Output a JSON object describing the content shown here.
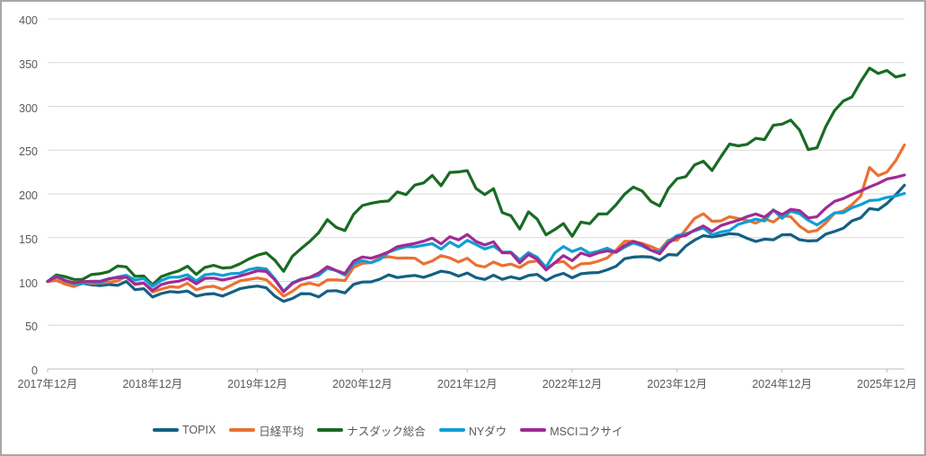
{
  "chart": {
    "background": "#FFFFFF",
    "frame_border_color": "#A6A6A6",
    "gridline_color": "#D9D9D9",
    "axis_line_color": "#BFBFBF",
    "label_color": "#595959"
  },
  "chart_data": {
    "type": "line",
    "title": "",
    "xlabel": "",
    "ylabel": "",
    "grid": "horizontal",
    "legend_position": "bottom",
    "start_month": "2017年12月",
    "frequency": "monthly",
    "y_axis": {
      "min": 0,
      "max": 400,
      "tick_interval": 50,
      "tick_labels": [
        "0",
        "50",
        "100",
        "150",
        "200",
        "250",
        "300",
        "350",
        "400"
      ]
    },
    "x_axis": {
      "months_per_tick": 12,
      "tick_labels": [
        "2017年12月",
        "2018年12月",
        "2019年12月",
        "2020年12月",
        "2021年12月",
        "2022年12月",
        "2023年12月",
        "2024年12月",
        "2025年12月"
      ]
    },
    "series": [
      {
        "name": "TOPIX",
        "color": "#156082",
        "values": [
          100,
          101.1,
          97.3,
          94.4,
          97.8,
          96.1,
          95.2,
          96.5,
          95.5,
          100.0,
          90.6,
          91.7,
          82.2,
          86.2,
          88.4,
          87.6,
          89.0,
          83.2,
          85.3,
          86.1,
          83.2,
          87.4,
          91.7,
          93.5,
          94.7,
          92.7,
          83.1,
          77.2,
          80.5,
          86.0,
          85.8,
          82.3,
          89.0,
          89.4,
          86.9,
          96.6,
          99.3,
          99.5,
          102.6,
          107.5,
          104.4,
          105.8,
          106.9,
          104.6,
          107.9,
          111.7,
          110.1,
          106.1,
          109.6,
          104.3,
          102.3,
          107.1,
          102.4,
          105.2,
          102.9,
          106.8,
          108.0,
          101.0,
          106.2,
          109.2,
          104.1,
          108.7,
          109.7,
          110.2,
          113.2,
          117.2,
          125.9,
          127.8,
          128.3,
          127.8,
          124.0,
          130.7,
          130.2,
          140.4,
          147.2,
          152.3,
          150.9,
          152.5,
          154.6,
          153.7,
          149.2,
          145.6,
          148.3,
          147.5,
          153.2,
          153.4,
          147.6,
          146.3,
          146.7,
          154.1,
          157.0,
          160.7,
          169.2,
          172.6,
          183.3,
          181.8,
          189.0,
          199.0,
          210.0
        ]
      },
      {
        "name": "日経平均",
        "color": "#E97132",
        "values": [
          100,
          101.5,
          96.9,
          94.2,
          98.7,
          97.5,
          98.0,
          99.1,
          100.4,
          106.0,
          96.3,
          98.2,
          87.9,
          91.2,
          93.9,
          93.2,
          97.8,
          90.5,
          93.5,
          94.5,
          90.9,
          95.6,
          100.7,
          102.3,
          103.9,
          101.9,
          92.9,
          83.1,
          88.7,
          96.1,
          97.9,
          95.4,
          101.6,
          101.8,
          100.9,
          116.1,
          120.6,
          121.5,
          127.2,
          128.2,
          126.6,
          126.8,
          126.5,
          119.9,
          123.4,
          129.4,
          126.9,
          122.2,
          126.5,
          118.6,
          116.5,
          122.2,
          117.9,
          119.8,
          115.9,
          122.1,
          123.4,
          113.9,
          121.2,
          122.9,
          114.6,
          120.0,
          120.6,
          123.2,
          126.8,
          135.7,
          145.8,
          145.7,
          143.3,
          139.9,
          135.6,
          147.1,
          147.0,
          159.4,
          172.0,
          177.3,
          168.7,
          169.1,
          173.9,
          171.8,
          169.8,
          166.6,
          171.7,
          167.8,
          175.2,
          173.8,
          163.2,
          156.5,
          158.3,
          166.8,
          177.9,
          180.4,
          187.7,
          197.4,
          230.2,
          220.8,
          225.0,
          238.0,
          256.0
        ]
      },
      {
        "name": "ナスダック総合",
        "color": "#196B24",
        "values": [
          100,
          107.4,
          105.4,
          102.3,
          102.4,
          107.8,
          108.8,
          111.1,
          117.5,
          116.6,
          105.8,
          106.2,
          96.1,
          105.5,
          109.1,
          112.0,
          117.3,
          108.0,
          116.0,
          118.4,
          115.3,
          115.9,
          120.1,
          125.5,
          130.0,
          132.6,
          124.1,
          111.5,
          128.8,
          137.5,
          145.7,
          155.7,
          170.6,
          161.8,
          158.1,
          176.7,
          186.7,
          189.3,
          191.1,
          191.9,
          202.3,
          199.2,
          210.1,
          212.5,
          221.0,
          209.3,
          224.5,
          225.1,
          226.6,
          206.3,
          199.2,
          206.0,
          178.7,
          175.0,
          159.8,
          179.5,
          171.2,
          153.2,
          159.2,
          166.1,
          151.6,
          167.8,
          166.0,
          177.0,
          177.1,
          187.4,
          199.7,
          207.8,
          203.3,
          191.5,
          186.2,
          206.1,
          217.4,
          219.7,
          233.1,
          237.3,
          226.8,
          242.4,
          256.9,
          254.9,
          256.6,
          263.5,
          262.1,
          278.4,
          279.7,
          284.3,
          273.0,
          250.6,
          252.7,
          276.9,
          295.1,
          306.0,
          310.8,
          328.3,
          343.7,
          337.5,
          341.0,
          333.5,
          336.0
        ]
      },
      {
        "name": "NYダウ",
        "color": "#0F9ED5",
        "values": [
          100,
          105.8,
          101.3,
          97.5,
          97.8,
          98.8,
          98.2,
          102.8,
          105.0,
          107.0,
          101.6,
          103.3,
          94.4,
          101.1,
          104.8,
          104.9,
          107.6,
          100.4,
          107.6,
          108.7,
          106.8,
          108.9,
          109.4,
          113.5,
          115.4,
          114.3,
          102.8,
          88.7,
          98.5,
          102.7,
          104.4,
          106.9,
          115.0,
          112.4,
          107.2,
          119.9,
          123.8,
          121.3,
          125.1,
          133.4,
          137.0,
          139.7,
          139.6,
          141.3,
          143.1,
          136.9,
          144.9,
          139.5,
          147.0,
          142.1,
          137.1,
          140.3,
          133.4,
          133.5,
          124.5,
          132.9,
          127.5,
          116.2,
          132.4,
          139.9,
          134.1,
          137.9,
          132.1,
          134.6,
          137.9,
          133.1,
          139.2,
          143.9,
          140.5,
          135.6,
          133.7,
          145.4,
          152.5,
          154.4,
          157.8,
          161.0,
          153.0,
          156.5,
          158.3,
          165.2,
          168.1,
          171.2,
          169.0,
          181.7,
          172.1,
          180.2,
          177.4,
          169.9,
          164.5,
          171.0,
          178.4,
          178.5,
          184.2,
          187.7,
          192.4,
          193.0,
          196.0,
          197.5,
          200.5
        ]
      },
      {
        "name": "MSCIコクサイ",
        "color": "#A02B93",
        "values": [
          100,
          105.4,
          100.8,
          98.6,
          99.7,
          100.2,
          100.1,
          103.1,
          104.2,
          104.8,
          97.1,
          98.1,
          89.6,
          96.3,
          99.0,
          100.2,
          103.6,
          97.3,
          103.5,
          103.8,
          101.6,
          103.6,
          106.2,
          109.0,
          112.1,
          111.4,
          101.8,
          88.1,
          97.6,
          102.1,
          104.7,
          109.5,
          116.8,
          112.5,
          109.0,
          123.1,
          127.9,
          126.5,
          129.7,
          133.7,
          139.7,
          141.6,
          143.4,
          145.9,
          149.4,
          142.9,
          151.1,
          147.5,
          153.6,
          145.6,
          141.6,
          145.2,
          132.7,
          132.7,
          121.1,
          130.7,
          125.2,
          113.1,
          121.1,
          129.5,
          123.7,
          132.4,
          129.1,
          132.7,
          134.8,
          133.5,
          141.1,
          145.7,
          142.2,
          135.7,
          131.6,
          143.8,
          150.7,
          152.5,
          158.7,
          163.4,
          157.2,
          163.8,
          167.0,
          169.8,
          174.1,
          177.0,
          173.4,
          181.2,
          176.3,
          182.4,
          180.9,
          172.5,
          173.9,
          183.7,
          191.4,
          194.7,
          199.4,
          203.5,
          207.9,
          212.0,
          217.0,
          219.0,
          221.5
        ]
      }
    ]
  }
}
